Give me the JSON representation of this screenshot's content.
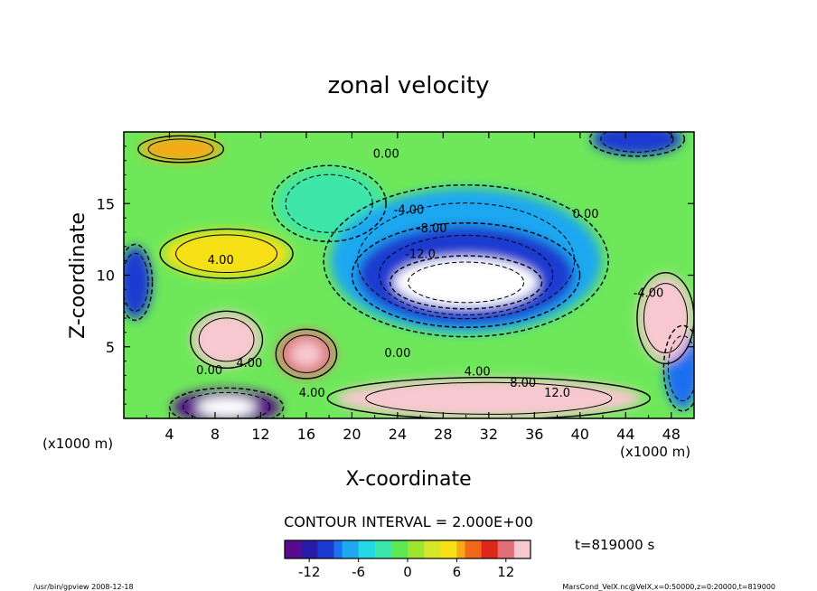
{
  "chart_data": {
    "type": "heatmap",
    "title": "zonal velocity",
    "xlabel": "X-coordinate",
    "ylabel": "Z-coordinate",
    "x_unit": "(x1000 m)",
    "x_unit_left": "(x1000 m)",
    "xlim": [
      0,
      50
    ],
    "ylim": [
      0,
      20
    ],
    "x_ticks": [
      "4",
      "8",
      "12",
      "16",
      "20",
      "24",
      "28",
      "32",
      "36",
      "40",
      "44",
      "48"
    ],
    "y_ticks": [
      "5",
      "10",
      "15"
    ],
    "contour_interval_text": "CONTOUR INTERVAL = 2.000E+00",
    "time_text": "t=819000 s",
    "colorbar": {
      "min": -15,
      "max": 15,
      "ticks": [
        "-12",
        "-6",
        "0",
        "6",
        "12"
      ],
      "colors": [
        "#5a0a8c",
        "#2a1aa8",
        "#1a3ad0",
        "#1e6ef0",
        "#1ea8f0",
        "#22d8e6",
        "#3ce6a8",
        "#5ce850",
        "#9ce632",
        "#d8e628",
        "#f8e018",
        "#f8a818",
        "#f06818",
        "#e02818",
        "#e07078",
        "#f8c8d0"
      ]
    },
    "contour_labels": [
      {
        "text": "0.00",
        "x": 23,
        "y": 18.2
      },
      {
        "text": "-4.00",
        "x": 25,
        "y": 14.3
      },
      {
        "text": "-8.00",
        "x": 27,
        "y": 13.0
      },
      {
        "text": "-12.0",
        "x": 26,
        "y": 11.2
      },
      {
        "text": "0.00",
        "x": 40.5,
        "y": 14.0
      },
      {
        "text": "4.00",
        "x": 8.5,
        "y": 10.8
      },
      {
        "text": "0.00",
        "x": 24,
        "y": 4.3
      },
      {
        "text": "4.00",
        "x": 31,
        "y": 3.0
      },
      {
        "text": "8.00",
        "x": 35,
        "y": 2.2
      },
      {
        "text": "12.0",
        "x": 38,
        "y": 1.5
      },
      {
        "text": "0.00",
        "x": 7.5,
        "y": 3.1
      },
      {
        "text": "4.00",
        "x": 11,
        "y": 3.6
      },
      {
        "text": "4.00",
        "x": 16.5,
        "y": 1.5
      },
      {
        "text": "-4.00",
        "x": 46,
        "y": 8.5
      }
    ],
    "field_blobs": [
      {
        "name": "central-jet-core",
        "x": 30,
        "y": 9.5,
        "value": -16
      },
      {
        "name": "central-jet",
        "x": 30,
        "y": 10,
        "value": -11
      },
      {
        "name": "central-jet-outer",
        "x": 30,
        "y": 11,
        "value": -6
      },
      {
        "name": "left-upper-shear",
        "x": 18,
        "y": 15,
        "value": -2
      },
      {
        "name": "left-max-a",
        "x": 9,
        "y": 5.5,
        "value": 15
      },
      {
        "name": "left-max-b",
        "x": 16,
        "y": 4.5,
        "value": 13
      },
      {
        "name": "left-warm-band",
        "x": 9,
        "y": 11.5,
        "value": 5
      },
      {
        "name": "right-max",
        "x": 47.5,
        "y": 7,
        "value": 14
      },
      {
        "name": "bottom-max",
        "x": 32,
        "y": 1.4,
        "value": 14
      },
      {
        "name": "bottom-left-min",
        "x": 9,
        "y": 0.8,
        "value": -14
      },
      {
        "name": "left-edge-min",
        "x": 1,
        "y": 9.5,
        "value": -11
      },
      {
        "name": "right-edge-min",
        "x": 49,
        "y": 3.5,
        "value": -9
      },
      {
        "name": "top-right-min",
        "x": 45,
        "y": 19.5,
        "value": -10
      },
      {
        "name": "top-left-warm",
        "x": 5,
        "y": 18.8,
        "value": 6
      }
    ]
  },
  "footer": {
    "left": "/usr/bin/gpview   2008-12-18",
    "right": "MarsCond_VelX.nc@VelX,x=0:50000,z=0:20000,t=819000"
  }
}
